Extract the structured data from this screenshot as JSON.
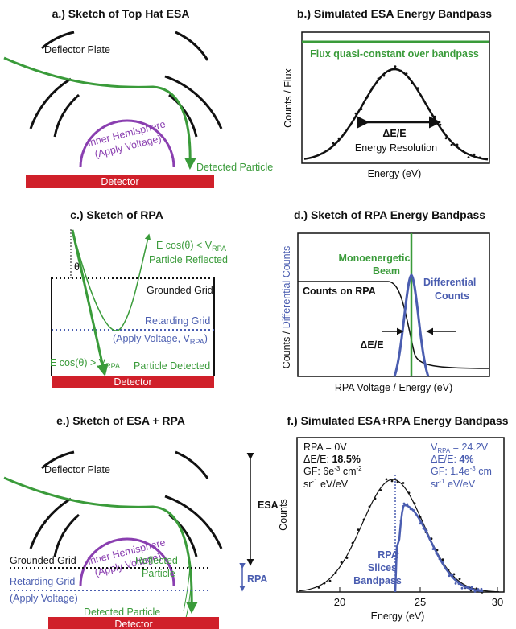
{
  "colors": {
    "green": "#3a9b3a",
    "purple": "#8a3fb0",
    "blue": "#4a5db0",
    "red": "#d0202a",
    "black": "#111111"
  },
  "panel_a": {
    "title": "a.) Sketch of Top Hat ESA",
    "deflector": "Deflector Plate",
    "inner1": "Inner Hemisphere",
    "inner2": "(Apply Voltage)",
    "detected": "Detected Particle",
    "detector": "Detector"
  },
  "panel_b": {
    "title": "b.) Simulated ESA Energy Bandpass",
    "flux": "Flux quasi-constant over bandpass",
    "ylabel": "Counts / Flux",
    "xlabel": "Energy (eV)",
    "dee": "ΔE/E",
    "res": "Energy Resolution"
  },
  "panel_c": {
    "title": "c.) Sketch of RPA",
    "theta": "θ",
    "refl1": "E cos(θ) < V",
    "refl1_sub": "RPA",
    "refl2": "Particle Reflected",
    "grounded": "Grounded Grid",
    "retarding": "Retarding Grid",
    "apply": "(Apply Voltage, V",
    "apply_sub": "RPA",
    "apply_end": ")",
    "det1": "E cos(θ) > V",
    "det1_sub": "RPA",
    "det2": "Particle Detected",
    "detector": "Detector"
  },
  "panel_d": {
    "title": "d.) Sketch of RPA Energy Bandpass",
    "ylabel_a": "Counts / ",
    "ylabel_b": "Differential Counts",
    "mono1": "Monoenergetic",
    "mono2": "Beam",
    "counts_rpa": "Counts on RPA",
    "diff1": "Differential",
    "diff2": "Counts",
    "dee": "ΔE/E",
    "xlabel": "RPA Voltage / Energy (eV)"
  },
  "panel_e": {
    "title": "e.) Sketch of ESA + RPA",
    "deflector": "Deflector Plate",
    "inner1": "Inner Hemisphere",
    "inner2": "(Apply Voltage)",
    "grounded": "Grounded Grid",
    "reflected1": "Reflected",
    "reflected2": "Particle",
    "retarding": "Retarding Grid",
    "apply": "(Apply Voltage)",
    "detected": "Detected Particle",
    "detector": "Detector",
    "esa": "ESA",
    "rpa": "RPA"
  },
  "panel_f": {
    "title": "f.) Simulated ESA+RPA Energy Bandpass",
    "ylabel": "Counts",
    "xlabel": "Energy (eV)",
    "xticks": [
      "20",
      "25",
      "30"
    ],
    "left1": "RPA = 0V",
    "left2a": "ΔE/E: ",
    "left2b": "18.5%",
    "left3": "GF: 6e",
    "left3sup": "-3",
    "left3b": " cm",
    "left3sup2": "-2",
    "left4": "sr",
    "left4sup": "-1",
    "left4b": " eV/eV",
    "right1": "V",
    "right1sub": "RPA",
    "right1b": " = 24.2V",
    "right2a": "ΔE/E: ",
    "right2b": "4%",
    "right3": "GF: 1.4e",
    "right3sup": "-3",
    "right3b": " cm",
    "right4": "sr",
    "right4sup": "-1",
    "right4b": " eV/eV",
    "slice1": "RPA",
    "slice2": "Slices",
    "slice3": "Bandpass"
  }
}
